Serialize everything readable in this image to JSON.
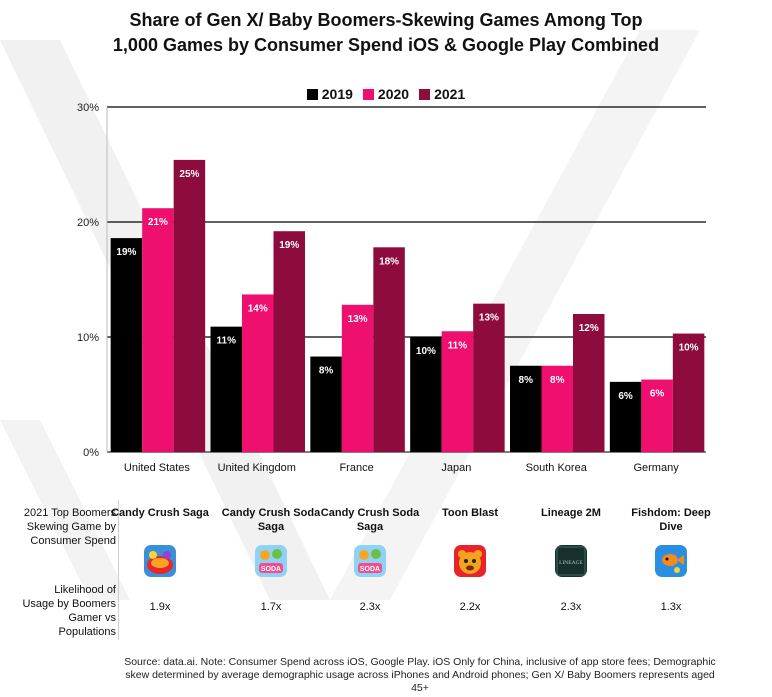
{
  "title_line1": "Share of Gen X/ Baby Boomers-Skewing Games Among Top",
  "title_line2": "1,000 Games by Consumer Spend iOS & Google Play Combined",
  "colors": {
    "s2019": "#000000",
    "s2020": "#ee0f6e",
    "s2021": "#8e0b3e"
  },
  "chart_data": {
    "type": "bar",
    "title": "Share of Gen X/ Baby Boomers-Skewing Games Among Top 1,000 Games by Consumer Spend iOS & Google Play Combined",
    "categories": [
      "United States",
      "United Kingdom",
      "France",
      "Japan",
      "South Korea",
      "Germany"
    ],
    "series": [
      {
        "name": "2019",
        "values": [
          18.6,
          10.9,
          8.3,
          10.0,
          7.5,
          6.1
        ],
        "labels": [
          "19%",
          "11%",
          "8%",
          "10%",
          "8%",
          "6%"
        ]
      },
      {
        "name": "2020",
        "values": [
          21.2,
          13.7,
          12.8,
          10.5,
          7.5,
          6.3
        ],
        "labels": [
          "21%",
          "14%",
          "13%",
          "11%",
          "8%",
          "6%"
        ]
      },
      {
        "name": "2021",
        "values": [
          25.4,
          19.2,
          17.8,
          12.9,
          12.0,
          10.3
        ],
        "labels": [
          "25%",
          "19%",
          "18%",
          "13%",
          "12%",
          "10%"
        ]
      }
    ],
    "yticks": [
      "0%",
      "10%",
      "20%",
      "30%"
    ],
    "ylim": [
      0,
      30
    ],
    "grid": true,
    "legend": "top-center"
  },
  "table": {
    "row1_header": "2021 Top Boomers Skewing Game by Consumer Spend",
    "row2_header": "Likelihood of Usage by Boomers Gamer vs Populations",
    "games": [
      {
        "name": "Candy Crush Saga",
        "icon": "candy-crush-saga-icon",
        "likelihood": "1.9x"
      },
      {
        "name": "Candy Crush Soda Saga",
        "icon": "candy-crush-soda-saga-icon",
        "likelihood": "1.7x"
      },
      {
        "name": "Candy Crush Soda Saga",
        "icon": "candy-crush-soda-saga-icon",
        "likelihood": "2.3x"
      },
      {
        "name": "Toon Blast",
        "icon": "toon-blast-icon",
        "likelihood": "2.2x"
      },
      {
        "name": "Lineage 2M",
        "icon": "lineage-2m-icon",
        "likelihood": "2.3x"
      },
      {
        "name": "Fishdom: Deep Dive",
        "icon": "fishdom-icon",
        "likelihood": "1.3x"
      }
    ],
    "icon_texts": {
      "soda": "SODA",
      "lineage": "LINEAGE"
    }
  },
  "source": "Source: data.ai. Note: Consumer Spend across iOS, Google Play. iOS Only for China, inclusive of app store fees; Demographic skew determined by average demographic usage across iPhones and Android phones; Gen X/ Baby Boomers represents aged 45+"
}
